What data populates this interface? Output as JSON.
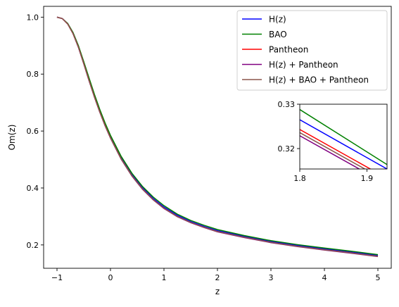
{
  "chart_data": {
    "type": "line",
    "xlabel": "z",
    "ylabel": "Om(z)",
    "xlim": [
      -1.25,
      5.25
    ],
    "ylim": [
      0.118,
      1.038
    ],
    "xticks": [
      -1,
      0,
      1,
      2,
      3,
      4,
      5
    ],
    "xtick_labels": [
      "−1",
      "0",
      "1",
      "2",
      "3",
      "4",
      "5"
    ],
    "yticks": [
      0.2,
      0.4,
      0.6,
      0.8,
      1.0
    ],
    "ytick_labels": [
      "0.2",
      "0.4",
      "0.6",
      "0.8",
      "1.0"
    ],
    "legend_position": "top-right",
    "grid": false,
    "x": [
      -1,
      -0.9,
      -0.8,
      -0.7,
      -0.6,
      -0.5,
      -0.4,
      -0.3,
      -0.2,
      -0.1,
      0,
      0.2,
      0.4,
      0.6,
      0.8,
      1,
      1.25,
      1.5,
      1.75,
      2,
      2.5,
      3,
      3.5,
      4,
      4.5,
      5
    ],
    "series": [
      {
        "name": "H(z)",
        "color": "#0000ff",
        "values": [
          1.0,
          0.995,
          0.977,
          0.944,
          0.897,
          0.84,
          0.781,
          0.724,
          0.671,
          0.623,
          0.58,
          0.506,
          0.447,
          0.4,
          0.363,
          0.333,
          0.304,
          0.282,
          0.265,
          0.25,
          0.23,
          0.212,
          0.198,
          0.186,
          0.175,
          0.163
        ]
      },
      {
        "name": "BAO",
        "color": "#008000",
        "values": [
          1.0,
          0.995,
          0.978,
          0.946,
          0.9,
          0.844,
          0.786,
          0.729,
          0.676,
          0.628,
          0.585,
          0.511,
          0.452,
          0.405,
          0.368,
          0.338,
          0.308,
          0.286,
          0.269,
          0.254,
          0.233,
          0.215,
          0.201,
          0.189,
          0.178,
          0.166
        ]
      },
      {
        "name": "Pantheon",
        "color": "#ff0000",
        "values": [
          1.0,
          0.995,
          0.976,
          0.942,
          0.895,
          0.837,
          0.777,
          0.72,
          0.667,
          0.619,
          0.576,
          0.502,
          0.443,
          0.396,
          0.359,
          0.329,
          0.3,
          0.279,
          0.262,
          0.247,
          0.227,
          0.209,
          0.195,
          0.183,
          0.172,
          0.16
        ]
      },
      {
        "name": "H(z) + Pantheon",
        "color": "#800080",
        "values": [
          1.0,
          0.995,
          0.976,
          0.942,
          0.894,
          0.836,
          0.776,
          0.719,
          0.666,
          0.618,
          0.575,
          0.501,
          0.442,
          0.395,
          0.358,
          0.328,
          0.299,
          0.278,
          0.261,
          0.246,
          0.226,
          0.208,
          0.194,
          0.182,
          0.171,
          0.159
        ]
      },
      {
        "name": "H(z) + BAO + Pantheon",
        "color": "#8c564b",
        "values": [
          1.0,
          0.995,
          0.976,
          0.942,
          0.895,
          0.837,
          0.777,
          0.72,
          0.667,
          0.619,
          0.576,
          0.502,
          0.443,
          0.396,
          0.359,
          0.329,
          0.3,
          0.279,
          0.262,
          0.247,
          0.227,
          0.209,
          0.195,
          0.183,
          0.172,
          0.16
        ]
      }
    ],
    "inset": {
      "xlim": [
        1.8,
        1.93
      ],
      "ylim": [
        0.3154,
        0.33
      ],
      "xticks": [
        1.8,
        1.9
      ],
      "xtick_labels": [
        "1.8",
        "1.9"
      ],
      "yticks": [
        0.32,
        0.33
      ],
      "ytick_labels": [
        "0.32",
        "0.33"
      ],
      "x": [
        1.8,
        1.93
      ],
      "series": [
        {
          "name": "H(z)",
          "color": "#0000ff",
          "values": [
            0.3265,
            0.3154
          ]
        },
        {
          "name": "BAO",
          "color": "#008000",
          "values": [
            0.3288,
            0.3164
          ]
        },
        {
          "name": "Pantheon",
          "color": "#ff0000",
          "values": [
            0.3243,
            0.3133
          ]
        },
        {
          "name": "H(z) + Pantheon",
          "color": "#800080",
          "values": [
            0.3229,
            0.3119
          ]
        },
        {
          "name": "H(z) + BAO + Pantheon",
          "color": "#8c564b",
          "values": [
            0.3236,
            0.3126
          ]
        }
      ]
    }
  }
}
